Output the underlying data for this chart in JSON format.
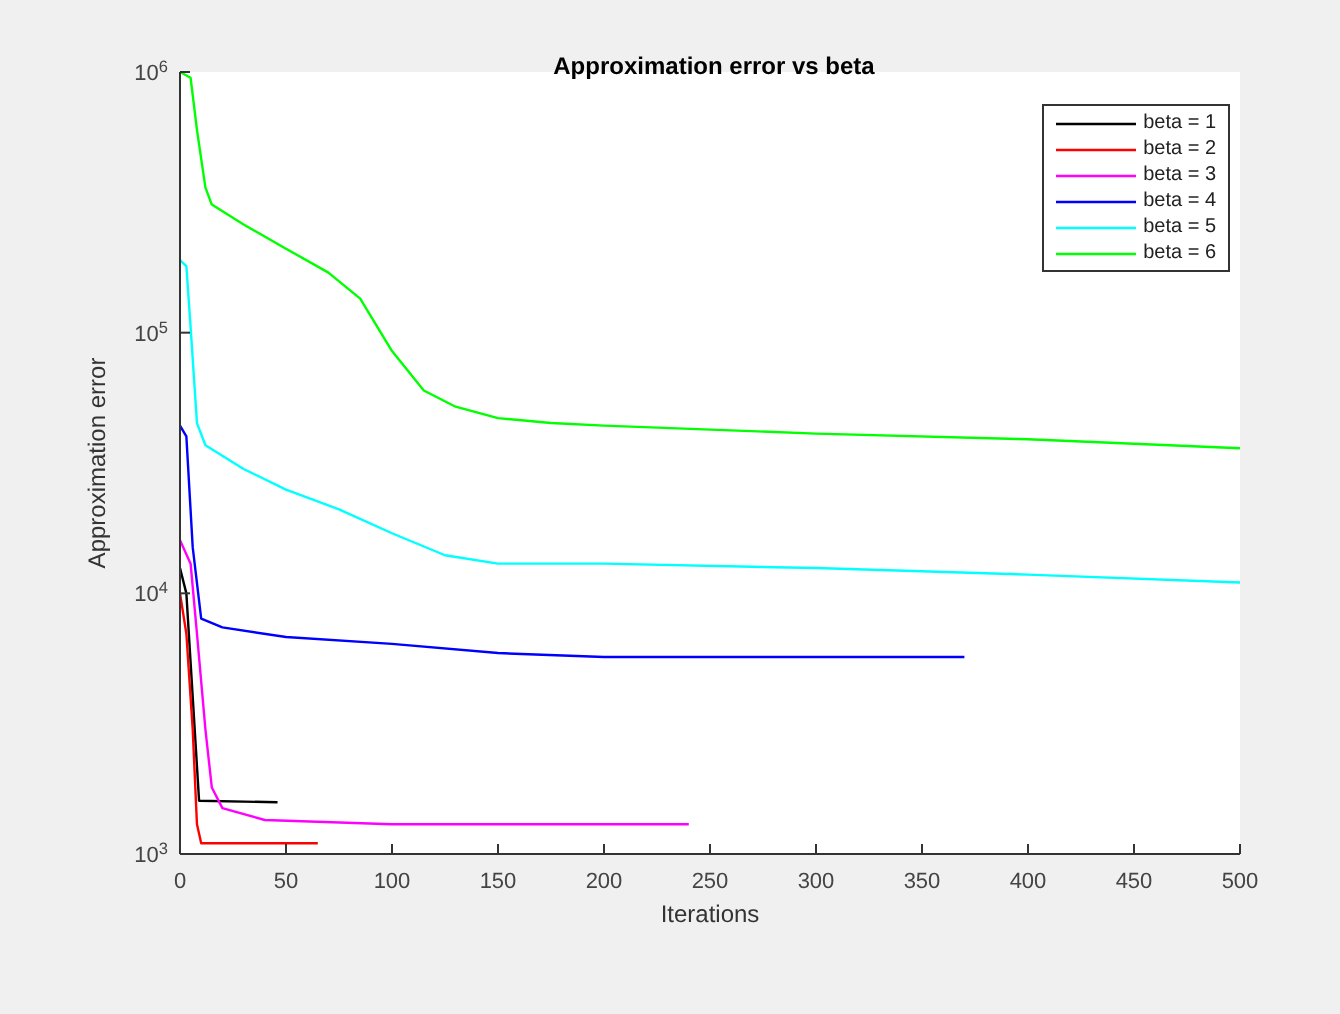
{
  "chart_data": {
    "type": "line",
    "title": "Approximation error vs beta",
    "xlabel": "Iterations",
    "ylabel": "Approximation error",
    "log": "y",
    "xlim": [
      0,
      500
    ],
    "xticks": [
      0,
      50,
      100,
      150,
      200,
      250,
      300,
      350,
      400,
      450,
      500
    ],
    "ylim": [
      1000,
      1000000
    ],
    "yticks": [
      {
        "value": 1000,
        "label": "10$^{3}$"
      },
      {
        "value": 10000,
        "label": "10$^{4}$"
      },
      {
        "value": 100000,
        "label": "10$^{5}$"
      },
      {
        "value": 1000000,
        "label": "10$^{6}$"
      }
    ],
    "legend": "top right",
    "grid": false,
    "marker": "none",
    "line_style": "solid",
    "series": [
      {
        "name": "beta = 1",
        "color": "#000000",
        "x": [
          0,
          3,
          6,
          9,
          46
        ],
        "values": [
          12500,
          10000,
          4000,
          1600,
          1580
        ]
      },
      {
        "name": "beta = 2",
        "color": "#ff0000",
        "x": [
          0,
          3,
          6,
          8,
          10,
          65
        ],
        "values": [
          10000,
          7000,
          3000,
          1300,
          1100,
          1100
        ]
      },
      {
        "name": "beta = 3",
        "color": "#ff00ff",
        "x": [
          0,
          5,
          8,
          12,
          15,
          20,
          40,
          100,
          240
        ],
        "values": [
          16000,
          13000,
          7000,
          3000,
          1800,
          1500,
          1350,
          1300,
          1300
        ]
      },
      {
        "name": "beta = 4",
        "color": "#0000ff",
        "x": [
          0,
          3,
          6,
          10,
          20,
          50,
          100,
          150,
          200,
          370
        ],
        "values": [
          44000,
          40000,
          15000,
          8000,
          7400,
          6800,
          6400,
          5900,
          5700,
          5700
        ]
      },
      {
        "name": "beta = 5",
        "color": "#00ffff",
        "x": [
          0,
          3,
          5,
          8,
          12,
          30,
          50,
          75,
          100,
          125,
          150,
          200,
          300,
          400,
          500
        ],
        "values": [
          190000,
          180000,
          105000,
          45000,
          37000,
          30000,
          25000,
          21000,
          17000,
          14000,
          13000,
          13000,
          12500,
          11800,
          11000
        ]
      },
      {
        "name": "beta = 6",
        "color": "#00ff00",
        "x": [
          0,
          5,
          8,
          12,
          15,
          30,
          50,
          70,
          85,
          100,
          115,
          130,
          150,
          175,
          200,
          300,
          400,
          500
        ],
        "values": [
          1000000,
          950000,
          600000,
          360000,
          310000,
          260000,
          210000,
          170000,
          135000,
          85000,
          60000,
          52000,
          47000,
          45000,
          44000,
          41000,
          39000,
          36000
        ]
      }
    ]
  }
}
